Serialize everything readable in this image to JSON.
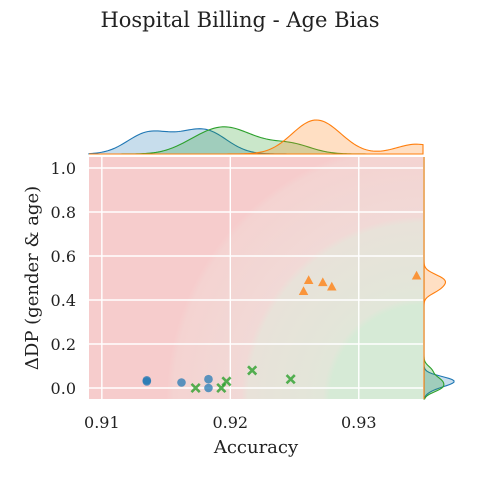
{
  "chart_data": {
    "type": "scatter",
    "title": "Hospital Billing - Age Bias",
    "xlabel": "Accuracy",
    "ylabel": "ΔDP (gender & age)",
    "xlim": [
      0.909,
      0.935
    ],
    "ylim": [
      -0.05,
      1.05
    ],
    "xticks": [
      0.91,
      0.92,
      0.93
    ],
    "xtick_labels": [
      "0.91",
      "0.92",
      "0.93"
    ],
    "yticks": [
      0.0,
      0.2,
      0.4,
      0.6,
      0.8,
      1.0
    ],
    "ytick_labels": [
      "0.0",
      "0.2",
      "0.4",
      "0.6",
      "0.8",
      "1.0"
    ],
    "grid": true,
    "marginal_distributions": true,
    "background_gradient": "red (top-left) to green (bottom-right)",
    "series": [
      {
        "color": "#1f77b4",
        "marker": "circle",
        "points": [
          {
            "x": 0.9135,
            "y": 0.03
          },
          {
            "x": 0.9135,
            "y": 0.035
          },
          {
            "x": 0.9162,
            "y": 0.025
          },
          {
            "x": 0.9183,
            "y": 0.04
          },
          {
            "x": 0.9183,
            "y": 0.0
          }
        ]
      },
      {
        "color": "#2ca02c",
        "marker": "x",
        "points": [
          {
            "x": 0.9173,
            "y": 0.0
          },
          {
            "x": 0.9193,
            "y": 0.0
          },
          {
            "x": 0.9197,
            "y": 0.03
          },
          {
            "x": 0.9217,
            "y": 0.08
          },
          {
            "x": 0.9247,
            "y": 0.04
          }
        ]
      },
      {
        "color": "#ff7f0e",
        "marker": "triangle",
        "points": [
          {
            "x": 0.9257,
            "y": 0.44
          },
          {
            "x": 0.9261,
            "y": 0.49
          },
          {
            "x": 0.9272,
            "y": 0.48
          },
          {
            "x": 0.9279,
            "y": 0.46
          },
          {
            "x": 0.9345,
            "y": 0.51
          }
        ]
      }
    ]
  }
}
